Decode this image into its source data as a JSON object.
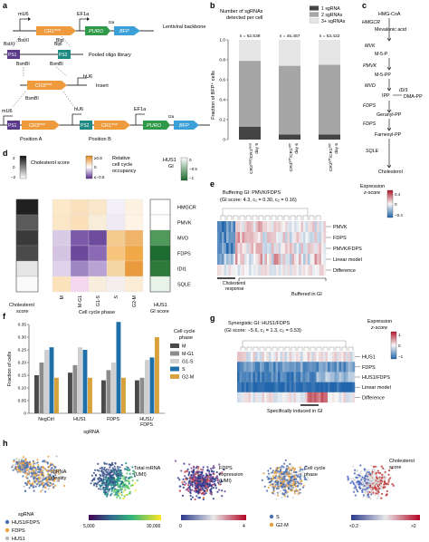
{
  "panels": {
    "a": {
      "letter": "a",
      "row1": {
        "promoter1": "mU6",
        "promoter2": "EF1a",
        "cr1": "CR1",
        "cr1_sup": "mod",
        "puro": "PURO",
        "t2a": "t2a",
        "bfp": "BFP",
        "backbone": "Lentiviral backbone",
        "site1": "BstXI",
        "site2": "BlpI"
      },
      "row2": {
        "site1": "BstXI",
        "site2": "BlpI",
        "ps1": "PS1",
        "ps2": "PS2",
        "label": "Pooled oligo library",
        "bsmbi_a": "BsmBI",
        "bsmbi_b": "BsmBI"
      },
      "row3": {
        "cr3": "CR3",
        "cr3_sup": "mod",
        "hu6": "hU6",
        "label": "Insert",
        "bsmbi": "BsmBI"
      },
      "row4": {
        "mu6": "mU6",
        "hu6": "hU6",
        "ef1a": "EF1a",
        "ps1": "PS1",
        "cr3": "CR3",
        "cr3_sup": "mod",
        "ps2": "PS2",
        "cr1": "CR1",
        "cr1_sup": "mod",
        "puro": "PURO",
        "t2a": "t2a",
        "bfp": "BFP",
        "posA": "Position A",
        "posB": "Position B"
      }
    },
    "b": {
      "letter": "b",
      "title_line1": "Number of sgRNAs",
      "title_line2": "detected per cell",
      "legend": [
        "1 sgRNA",
        "2 sgRNAs",
        "3+ sgRNAs"
      ],
      "ylabel": "Fraction of BFP⁺ cells",
      "yticks": [
        "0",
        "0.2",
        "0.4",
        "0.6",
        "0.8",
        "1.0"
      ],
      "n_labels": [
        "n = 62,539",
        "n = 45,457",
        "n = 53,422"
      ],
      "xlabels": [
        {
          "base1": "CR3",
          "sup1": "mod",
          "mid": "/CR1",
          "sup2": "mod",
          "line2": "day 9"
        },
        {
          "base1": "CR3",
          "sup1": "WT",
          "mid": "/CR1",
          "sup2": "WT",
          "line2": "day 6"
        },
        {
          "base1": "CR3",
          "sup1": "WT",
          "mid": "/CR1",
          "sup2": "WT",
          "line2": "day 6"
        }
      ]
    },
    "c": {
      "letter": "c",
      "items": [
        "HMG-CoA",
        "HMGCR",
        "Mevalonic acid",
        "MVK",
        "M-5-P",
        "PMVK",
        "M-5-PP",
        "MVD",
        "IPP",
        "IDI1",
        "DMA-PP",
        "FDPS",
        "Geranyl-PP",
        "FDPS",
        "Farnesyl-PP",
        "SQLE",
        "Cholesterol"
      ]
    },
    "d": {
      "letter": "d",
      "chol_legend_title": "Cholesterol score",
      "chol_ticks": [
        "2",
        "0",
        "−2"
      ],
      "occ_legend_title_line1": "Relative",
      "occ_legend_title_line2": "cell cycle",
      "occ_legend_title_line3": "occupancy",
      "occ_ticks": [
        "≥0.8",
        "0",
        "≤−0.8"
      ],
      "gi_legend_title_line1": "HUS1",
      "gi_legend_title_line2": "GI",
      "gi_ticks": [
        "0",
        "−0.5",
        "−1"
      ],
      "genes": [
        "HMGCR",
        "PMVK",
        "MVD",
        "FDPS",
        "IDI1",
        "SQLE"
      ],
      "phases": [
        "M",
        "M-G1",
        "G1-S",
        "S",
        "G2-M"
      ],
      "xlabel_chol_line1": "Cholesterol",
      "xlabel_chol_line2": "score",
      "xlabel_phase": "Cell cycle phase",
      "xlabel_gi_line1": "HUS1",
      "xlabel_gi_line2": "GI score"
    },
    "e": {
      "letter": "e",
      "title": "Buffering GI: PMVK/FDPS",
      "subtitle": "(GI score: 4.3, c₁ = 0.30, c₂ = 0.16)",
      "legend_title_line1": "Expression",
      "legend_title_line2": "z-score",
      "legend_ticks": [
        "0.4",
        "0",
        "−0.4"
      ],
      "rows": [
        "PMVK",
        "FDPS",
        "PMVK/FDPS",
        "Linear model",
        "Difference"
      ],
      "xlabel_left_line1": "Cholesterol",
      "xlabel_left_line2": "response",
      "xlabel_right": "Buffered in GI"
    },
    "f": {
      "letter": "f",
      "ylabel": "Fraction of cells",
      "yticks": [
        "0",
        "0.05",
        "0.10",
        "0.15",
        "0.20",
        "0.25",
        "0.30",
        "0.35"
      ],
      "xlabel": "sgRNA",
      "legend_title_line1": "Cell cycle",
      "legend_title_line2": "phase",
      "legend": [
        "M",
        "M-G1",
        "G1-S",
        "S",
        "G2-M"
      ],
      "groups": [
        "NegCtrl",
        "HUS1",
        "FDPS",
        "HUS1/\nFDPS"
      ]
    },
    "g": {
      "letter": "g",
      "title": "Synergistic GI: HUS1/FDPS",
      "subtitle": "(GI score: −5.6, c₁ = 1.3, c₂ = 0.53)",
      "legend_title_line1": "Expression",
      "legend_title_line2": "z-score",
      "legend_ticks": [
        "1",
        "0",
        "−1"
      ],
      "rows": [
        "HUS1",
        "FDPS",
        "HUS1/FDPS",
        "Linear model",
        "Difference"
      ],
      "xlabel": "Specifically induced in GI"
    },
    "h": {
      "letter": "h",
      "umap1_label_line1": "sgRNA",
      "umap1_label_line2": "identity",
      "umap2_label_line1": "Total mRNA",
      "umap2_label_line2": "(UMI)",
      "umap3_label_line1": "FDPS",
      "umap3_label_line2": "expression",
      "umap3_label_line3": "(UMI)",
      "umap4_label_line1": "Cell cycle",
      "umap4_label_line2": "phase",
      "umap5_label_line1": "Cholesterol",
      "umap5_label_line2": "score",
      "legend1_title": "sgRNA",
      "legend1_items": [
        "HUS1/FDPS",
        "FDPS",
        "HUS1"
      ],
      "cb2_ticks": [
        "5,000",
        "30,000"
      ],
      "cb3_ticks": [
        "0",
        "4"
      ],
      "legend4_items": [
        "S",
        "G2-M"
      ],
      "cb5_ticks": [
        "<0.2",
        ">2"
      ]
    }
  },
  "chart_data": [
    {
      "type": "bar",
      "panel": "b",
      "categories": [
        "CR3mod/CR1mod day 9",
        "CR3WT/CR1WT day 6",
        "CR3WT/CR1WT day 6"
      ],
      "series": [
        {
          "name": "1 sgRNA",
          "values": [
            0.13,
            0.05,
            0.05
          ]
        },
        {
          "name": "2 sgRNAs",
          "values": [
            0.66,
            0.69,
            0.7
          ]
        },
        {
          "name": "3+ sgRNAs",
          "values": [
            0.21,
            0.26,
            0.25
          ]
        }
      ],
      "stacked": true,
      "ylim": [
        0,
        1.0
      ],
      "ylabel": "Fraction of BFP⁺ cells",
      "colors": [
        "#444444",
        "#a6a6a6",
        "#e6e6e6"
      ]
    },
    {
      "type": "bar",
      "panel": "f",
      "categories": [
        "NegCtrl",
        "HUS1",
        "FDPS",
        "HUS1/FDPS"
      ],
      "series": [
        {
          "name": "M",
          "values": [
            0.15,
            0.16,
            0.13,
            0.13
          ]
        },
        {
          "name": "M-G1",
          "values": [
            0.2,
            0.19,
            0.17,
            0.14
          ]
        },
        {
          "name": "G1-S",
          "values": [
            0.25,
            0.26,
            0.2,
            0.21
          ]
        },
        {
          "name": "S",
          "values": [
            0.26,
            0.25,
            0.36,
            0.22
          ]
        },
        {
          "name": "G2-M",
          "values": [
            0.14,
            0.14,
            0.14,
            0.3
          ]
        }
      ],
      "ylim": [
        0,
        0.35
      ],
      "ylabel": "Fraction of cells",
      "xlabel": "sgRNA",
      "colors": [
        "#4a4a4a",
        "#8c8c8c",
        "#cfcfcf",
        "#1f6fa8",
        "#d9a13b"
      ]
    }
  ],
  "colors": {
    "cr_orange": "#f09a3e",
    "puro_green": "#2e9a4a",
    "bfp_blue": "#3ba0d8",
    "ps1_purple": "#5b3a8c",
    "ps2_teal": "#1f8a84",
    "sqle_grey": "#4a4a4a"
  }
}
